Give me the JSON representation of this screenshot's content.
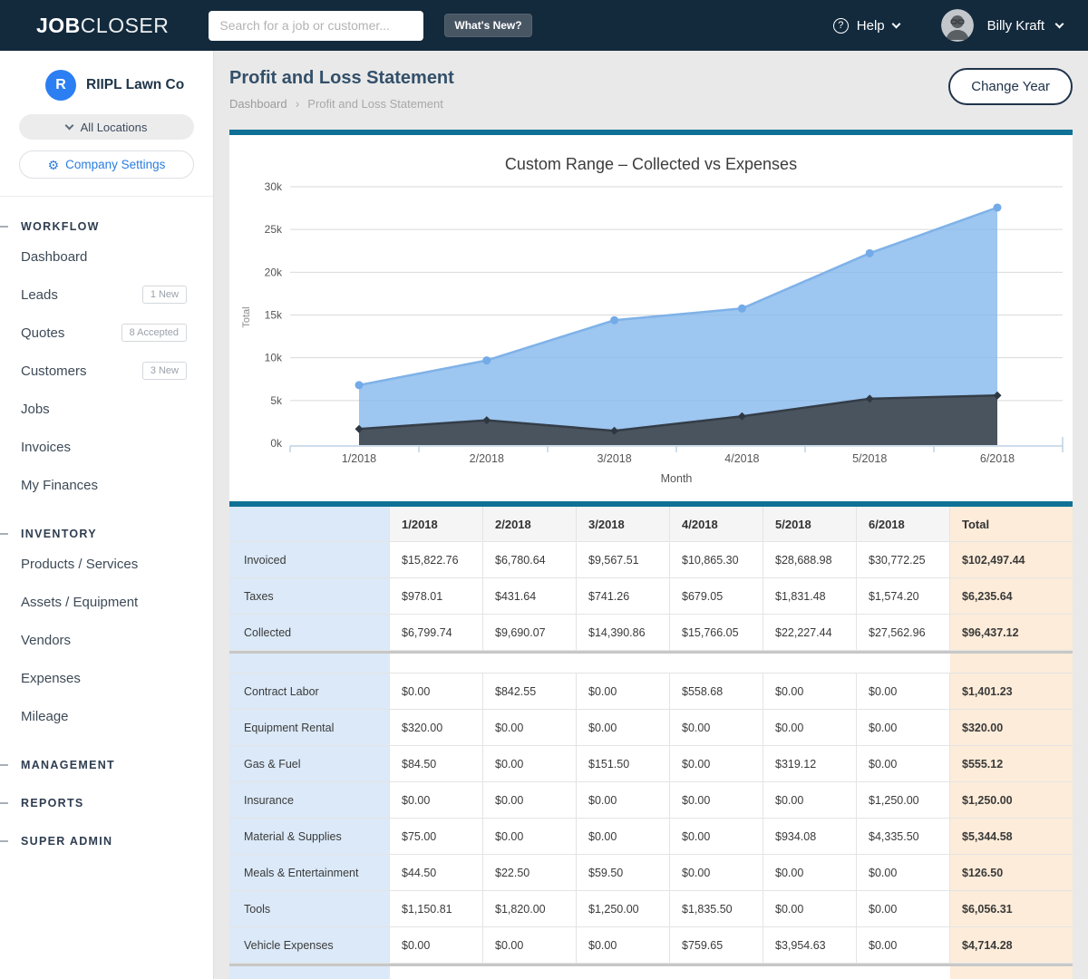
{
  "navbar": {
    "logo_bold": "JOB",
    "logo_light": "CLOSER",
    "search_placeholder": "Search for a job or customer...",
    "whats_new_label": "What's New?",
    "help_label": "Help",
    "user_name": "Billy Kraft"
  },
  "sidebar": {
    "company_initial": "R",
    "company_name": "RIIPL Lawn Co",
    "locations_label": "All Locations",
    "settings_label": "Company Settings",
    "sections": [
      {
        "label": "WORKFLOW",
        "items": [
          {
            "label": "Dashboard"
          },
          {
            "label": "Leads",
            "badge": "1 New"
          },
          {
            "label": "Quotes",
            "badge": "8 Accepted"
          },
          {
            "label": "Customers",
            "badge": "3 New"
          },
          {
            "label": "Jobs"
          },
          {
            "label": "Invoices"
          },
          {
            "label": "My Finances"
          }
        ]
      },
      {
        "label": "INVENTORY",
        "items": [
          {
            "label": "Products / Services"
          },
          {
            "label": "Assets / Equipment"
          },
          {
            "label": "Vendors"
          },
          {
            "label": "Expenses"
          },
          {
            "label": "Mileage"
          }
        ]
      },
      {
        "label": "MANAGEMENT",
        "items": []
      },
      {
        "label": "REPORTS",
        "items": []
      },
      {
        "label": "SUPER ADMIN",
        "items": []
      }
    ]
  },
  "header": {
    "title": "Profit and Loss Statement",
    "breadcrumb": [
      "Dashboard",
      "Profit and Loss Statement"
    ],
    "breadcrumb_separator": "›",
    "change_year_label": "Change Year"
  },
  "chart_data": {
    "type": "area",
    "title": "Custom Range – Collected vs Expenses",
    "xlabel": "Month",
    "ylabel": "Total",
    "categories": [
      "1/2018",
      "2/2018",
      "3/2018",
      "4/2018",
      "5/2018",
      "6/2018"
    ],
    "series": [
      {
        "name": "Collected",
        "values": [
          6799.74,
          9690.07,
          14390.86,
          15766.05,
          22227.44,
          27562.96
        ],
        "line_color": "#7fb2e8",
        "fill_color": "#85b8ec",
        "fill_opacity": 0.8,
        "marker": "circle",
        "marker_color": "#73aae8"
      },
      {
        "name": "Expenses",
        "values": [
          1674.81,
          2685.05,
          1461.0,
          3153.83,
          5207.83,
          5585.5
        ],
        "line_color": "#343d47",
        "fill_color": "#4a545e",
        "fill_opacity": 1,
        "marker": "diamond",
        "marker_color": "#2f3842"
      }
    ],
    "ylim": [
      0,
      30000
    ],
    "ytick_step": 5000,
    "ytick_labels": [
      "0k",
      "5k",
      "10k",
      "15k",
      "20k",
      "25k",
      "30k"
    ],
    "grid": true,
    "legend": false
  },
  "table": {
    "columns": [
      "",
      "1/2018",
      "2/2018",
      "3/2018",
      "4/2018",
      "5/2018",
      "6/2018",
      "Total"
    ],
    "income_rows": [
      {
        "label": "Invoiced",
        "values": [
          "$15,822.76",
          "$6,780.64",
          "$9,567.51",
          "$10,865.30",
          "$28,688.98",
          "$30,772.25"
        ],
        "total": "$102,497.44"
      },
      {
        "label": "Taxes",
        "values": [
          "$978.01",
          "$431.64",
          "$741.26",
          "$679.05",
          "$1,831.48",
          "$1,574.20"
        ],
        "total": "$6,235.64"
      },
      {
        "label": "Collected",
        "values": [
          "$6,799.74",
          "$9,690.07",
          "$14,390.86",
          "$15,766.05",
          "$22,227.44",
          "$27,562.96"
        ],
        "total": "$96,437.12"
      }
    ],
    "expense_rows": [
      {
        "label": "Contract Labor",
        "values": [
          "$0.00",
          "$842.55",
          "$0.00",
          "$558.68",
          "$0.00",
          "$0.00"
        ],
        "total": "$1,401.23"
      },
      {
        "label": "Equipment Rental",
        "values": [
          "$320.00",
          "$0.00",
          "$0.00",
          "$0.00",
          "$0.00",
          "$0.00"
        ],
        "total": "$320.00"
      },
      {
        "label": "Gas & Fuel",
        "values": [
          "$84.50",
          "$0.00",
          "$151.50",
          "$0.00",
          "$319.12",
          "$0.00"
        ],
        "total": "$555.12"
      },
      {
        "label": "Insurance",
        "values": [
          "$0.00",
          "$0.00",
          "$0.00",
          "$0.00",
          "$0.00",
          "$1,250.00"
        ],
        "total": "$1,250.00"
      },
      {
        "label": "Material & Supplies",
        "values": [
          "$75.00",
          "$0.00",
          "$0.00",
          "$0.00",
          "$934.08",
          "$4,335.50"
        ],
        "total": "$5,344.58"
      },
      {
        "label": "Meals & Entertainment",
        "values": [
          "$44.50",
          "$22.50",
          "$59.50",
          "$0.00",
          "$0.00",
          "$0.00"
        ],
        "total": "$126.50"
      },
      {
        "label": "Tools",
        "values": [
          "$1,150.81",
          "$1,820.00",
          "$1,250.00",
          "$1,835.50",
          "$0.00",
          "$0.00"
        ],
        "total": "$6,056.31"
      },
      {
        "label": "Vehicle Expenses",
        "values": [
          "$0.00",
          "$0.00",
          "$0.00",
          "$759.65",
          "$3,954.63",
          "$0.00"
        ],
        "total": "$4,714.28"
      }
    ]
  },
  "colors": {
    "navbar_bg": "#132a3d",
    "accent_teal": "#0e7195",
    "link_blue": "#2a7de1",
    "company_logo_blue": "#2b7ff2",
    "table_label_bg": "#dbe9f8",
    "table_total_bg": "#fcecd9",
    "chart_blue_fill": "#9ec7f0",
    "chart_dark_fill": "#4a545e",
    "page_bg": "#e9e9e9"
  }
}
